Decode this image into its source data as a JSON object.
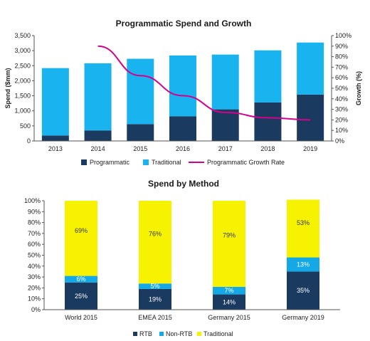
{
  "colors": {
    "programmatic": "#1b3a5f",
    "traditional_top": "#19b3f0",
    "growth_line": "#d6008c",
    "rtb": "#1b3a5f",
    "non_rtb": "#14a9e6",
    "traditional_bottom": "#f7f200",
    "axis": "#555555"
  },
  "chart_data": [
    {
      "type": "bar",
      "title": "Programmatic Spend and Growth",
      "categories": [
        "2013",
        "2014",
        "2015",
        "2016",
        "2017",
        "2018",
        "2019"
      ],
      "series": [
        {
          "name": "Programmatic",
          "kind": "bar",
          "stack": "spend",
          "values": [
            180,
            350,
            560,
            820,
            1050,
            1280,
            1540
          ]
        },
        {
          "name": "Traditional",
          "kind": "bar",
          "stack": "spend",
          "values": [
            2240,
            2230,
            2170,
            2020,
            1820,
            1730,
            1730
          ]
        },
        {
          "name": "Programmatic Growth Rate",
          "kind": "line",
          "axis": "right",
          "values": [
            null,
            90,
            62,
            43,
            27,
            22,
            20
          ]
        }
      ],
      "ylabel": "Spend ($mm)",
      "ylim": [
        0,
        3500
      ],
      "yticks": [
        "0",
        "500",
        "1,000",
        "1,500",
        "2,000",
        "2,500",
        "3,000",
        "3,500"
      ],
      "y2label": "Growth (%)",
      "y2lim": [
        0,
        100
      ],
      "y2ticks": [
        "0%",
        "10%",
        "20%",
        "30%",
        "40%",
        "50%",
        "60%",
        "70%",
        "80%",
        "90%",
        "100%"
      ],
      "legend": "bottom",
      "grid": false
    },
    {
      "type": "bar",
      "stacked": true,
      "title": "Spend by Method",
      "categories": [
        "World 2015",
        "EMEA 2015",
        "Germany 2015",
        "Germany 2019"
      ],
      "series": [
        {
          "name": "RTB",
          "values": [
            25,
            19,
            14,
            35
          ],
          "labels": [
            "25%",
            "19%",
            "14%",
            "35%"
          ]
        },
        {
          "name": "Non-RTB",
          "values": [
            6,
            5,
            7,
            13
          ],
          "labels": [
            "6%",
            "5%",
            "7%",
            "13%"
          ]
        },
        {
          "name": "Traditional",
          "values": [
            69,
            76,
            79,
            53
          ],
          "labels": [
            "69%",
            "76%",
            "79%",
            "53%"
          ]
        }
      ],
      "ylim": [
        0,
        100
      ],
      "yticks": [
        "0%",
        "10%",
        "20%",
        "30%",
        "40%",
        "50%",
        "60%",
        "70%",
        "80%",
        "90%",
        "100%"
      ],
      "legend": "bottom",
      "grid": false
    }
  ]
}
